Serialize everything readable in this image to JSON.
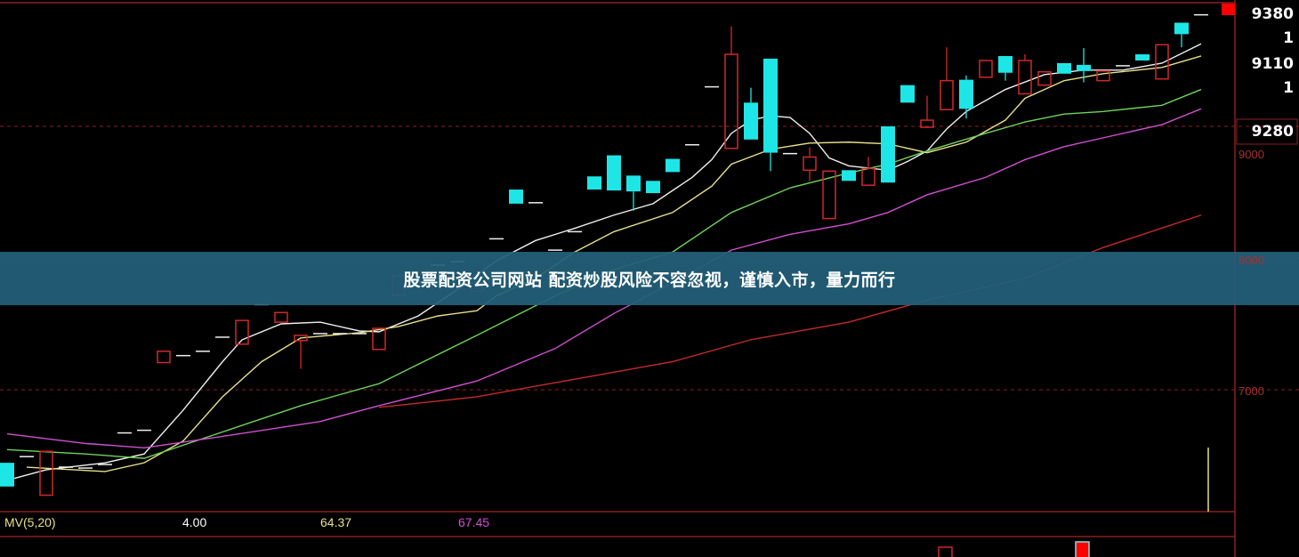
{
  "banner": {
    "text": "股票配资公司网站 配资炒股风险不容忽视，谨慎入市，量力而行"
  },
  "axis_readouts": [
    "9380",
    "1",
    "9110",
    "1",
    "9280"
  ],
  "indicator": {
    "name": "MV(5,20)",
    "v1": "4.00",
    "v2": "64.37",
    "v3": "67.45"
  },
  "colors": {
    "up": "#d0282a",
    "down": "#1ee6e6",
    "ma5": "#f0f0f0",
    "ma10": "#e8e08a",
    "ma20": "#6fd35a",
    "ma30": "#d050d0",
    "ma60": "#c82a2a",
    "grid": "#8a1f1f",
    "banner": "#22607a"
  },
  "chart_data": {
    "type": "candlestick",
    "yticks": [
      7000,
      8000,
      9000
    ],
    "ytick_labels": [
      "7000",
      "8000",
      "9000"
    ],
    "grid": "horizontal dashed",
    "candles": [
      [
        6445,
        6445,
        6265,
        6265
      ],
      [
        6492,
        6492,
        6492,
        6492
      ],
      [
        6199,
        6532,
        6199,
        6532
      ],
      [
        6412,
        6412,
        6412,
        6412
      ],
      [
        6405,
        6405,
        6405,
        6405
      ],
      [
        6432,
        6432,
        6432,
        6432
      ],
      [
        6672,
        6672,
        6672,
        6672
      ],
      [
        6692,
        6692,
        6692,
        6692
      ],
      [
        7206,
        7292,
        7206,
        7292
      ],
      [
        7259,
        7259,
        7259,
        7259
      ],
      [
        7292,
        7292,
        7292,
        7292
      ],
      [
        7399,
        7399,
        7399,
        7399
      ],
      [
        7346,
        7526,
        7346,
        7526
      ],
      [
        7646,
        7646,
        7646,
        7646
      ],
      [
        7513,
        7586,
        7513,
        7586
      ],
      [
        7373,
        7413,
        7159,
        7413
      ],
      [
        7426,
        7426,
        7426,
        7426
      ],
      [
        7426,
        7426,
        7426,
        7426
      ],
      [
        7426,
        7426,
        7426,
        7426
      ],
      [
        7306,
        7466,
        7306,
        7466
      ],
      [
        7719,
        7866,
        7719,
        7866
      ],
      [
        7826,
        7826,
        7813,
        7813
      ],
      [
        7946,
        7946,
        7946,
        7946
      ],
      [
        7973,
        7973,
        7973,
        7973
      ],
      [
        7746,
        7813,
        7746,
        7813
      ],
      [
        8146,
        8146,
        8146,
        8146
      ],
      [
        8520,
        8520,
        8413,
        8413
      ],
      [
        8420,
        8420,
        8420,
        8420
      ],
      [
        8060,
        8060,
        8060,
        8060
      ],
      [
        8200,
        8200,
        8200,
        8200
      ],
      [
        8620,
        8620,
        8520,
        8520
      ],
      [
        8780,
        8780,
        8513,
        8513
      ],
      [
        8626,
        8626,
        8360,
        8506
      ],
      [
        8586,
        8586,
        8493,
        8493
      ],
      [
        8753,
        8753,
        8653,
        8653
      ],
      [
        8860,
        8860,
        8860,
        8860
      ],
      [
        9300,
        9300,
        9300,
        9300
      ],
      [
        8833,
        9760,
        8833,
        9547
      ],
      [
        9180,
        9293,
        8900,
        8900
      ],
      [
        9514,
        9514,
        8660,
        8800
      ],
      [
        8793,
        8793,
        8793,
        8793
      ],
      [
        8667,
        8840,
        8586,
        8767
      ],
      [
        8300,
        8660,
        8300,
        8660
      ],
      [
        8667,
        8667,
        8586,
        8586
      ],
      [
        8553,
        8767,
        8553,
        8680
      ],
      [
        9000,
        9000,
        8573,
        8573
      ],
      [
        9313,
        9313,
        9180,
        9180
      ],
      [
        8993,
        9233,
        8993,
        9047
      ],
      [
        9127,
        9600,
        9127,
        9347
      ],
      [
        9354,
        9387,
        9060,
        9133
      ],
      [
        9373,
        9500,
        9373,
        9500
      ],
      [
        9534,
        9534,
        9347,
        9407
      ],
      [
        9247,
        9547,
        9247,
        9500
      ],
      [
        9313,
        9414,
        9313,
        9414
      ],
      [
        9480,
        9480,
        9400,
        9400
      ],
      [
        9467,
        9594,
        9334,
        9420
      ],
      [
        9347,
        9420,
        9347,
        9420
      ],
      [
        9460,
        9460,
        9460,
        9460
      ],
      [
        9547,
        9547,
        9500,
        9500
      ],
      [
        9360,
        9620,
        9360,
        9620
      ],
      [
        9787,
        9787,
        9600,
        9700
      ],
      [
        9847,
        9847,
        9847,
        9847
      ]
    ],
    "moving_averages": [
      {
        "key": "ma5",
        "points": [
          [
            0,
            6312
          ],
          [
            2,
            6392
          ],
          [
            5,
            6445
          ],
          [
            7,
            6512
          ],
          [
            9,
            6846
          ],
          [
            11,
            7212
          ],
          [
            12,
            7379
          ],
          [
            14,
            7500
          ],
          [
            16,
            7513
          ],
          [
            18,
            7446
          ],
          [
            19,
            7440
          ],
          [
            21,
            7560
          ],
          [
            23,
            7760
          ],
          [
            25,
            7980
          ],
          [
            27,
            8133
          ],
          [
            29,
            8226
          ],
          [
            31,
            8326
          ],
          [
            33,
            8413
          ],
          [
            35,
            8613
          ],
          [
            36,
            8747
          ],
          [
            37,
            8947
          ],
          [
            38,
            9047
          ],
          [
            39,
            9080
          ],
          [
            40,
            9067
          ],
          [
            41,
            8947
          ],
          [
            42,
            8760
          ],
          [
            43,
            8700
          ],
          [
            45,
            8667
          ],
          [
            46,
            8733
          ],
          [
            47,
            8813
          ],
          [
            48,
            8980
          ],
          [
            49,
            9113
          ],
          [
            51,
            9280
          ],
          [
            53,
            9393
          ],
          [
            55,
            9427
          ],
          [
            57,
            9427
          ],
          [
            59,
            9480
          ],
          [
            61,
            9627
          ]
        ]
      },
      {
        "key": "ma10",
        "points": [
          [
            1,
            6412
          ],
          [
            5,
            6379
          ],
          [
            7,
            6445
          ],
          [
            9,
            6612
          ],
          [
            11,
            6946
          ],
          [
            13,
            7213
          ],
          [
            15,
            7393
          ],
          [
            18,
            7433
          ],
          [
            20,
            7480
          ],
          [
            22,
            7560
          ],
          [
            24,
            7600
          ],
          [
            25,
            7713
          ],
          [
            27,
            7846
          ],
          [
            29,
            8046
          ],
          [
            31,
            8200
          ],
          [
            34,
            8346
          ],
          [
            36,
            8546
          ],
          [
            37,
            8713
          ],
          [
            39,
            8826
          ],
          [
            41,
            8873
          ],
          [
            43,
            8880
          ],
          [
            45,
            8867
          ],
          [
            47,
            8800
          ],
          [
            49,
            8880
          ],
          [
            51,
            9047
          ],
          [
            52,
            9213
          ],
          [
            54,
            9347
          ],
          [
            56,
            9400
          ],
          [
            59,
            9447
          ],
          [
            61,
            9534
          ]
        ]
      },
      {
        "key": "ma20",
        "points": [
          [
            0,
            6545
          ],
          [
            4,
            6512
          ],
          [
            7,
            6479
          ],
          [
            11,
            6679
          ],
          [
            15,
            6879
          ],
          [
            19,
            7046
          ],
          [
            24,
            7413
          ],
          [
            28,
            7713
          ],
          [
            31,
            7913
          ],
          [
            34,
            8046
          ],
          [
            37,
            8346
          ],
          [
            40,
            8533
          ],
          [
            43,
            8646
          ],
          [
            45,
            8713
          ],
          [
            47,
            8813
          ],
          [
            50,
            8947
          ],
          [
            52,
            9033
          ],
          [
            54,
            9093
          ],
          [
            56,
            9113
          ],
          [
            59,
            9160
          ],
          [
            61,
            9280
          ]
        ]
      },
      {
        "key": "ma30",
        "points": [
          [
            0,
            6665
          ],
          [
            4,
            6592
          ],
          [
            7,
            6559
          ],
          [
            11,
            6646
          ],
          [
            16,
            6759
          ],
          [
            19,
            6879
          ],
          [
            24,
            7066
          ],
          [
            28,
            7313
          ],
          [
            31,
            7579
          ],
          [
            34,
            7813
          ],
          [
            37,
            8060
          ],
          [
            40,
            8180
          ],
          [
            43,
            8260
          ],
          [
            45,
            8346
          ],
          [
            47,
            8480
          ],
          [
            50,
            8613
          ],
          [
            52,
            8747
          ],
          [
            54,
            8846
          ],
          [
            56,
            8913
          ],
          [
            59,
            9013
          ],
          [
            61,
            9133
          ]
        ]
      },
      {
        "key": "ma60",
        "points": [
          [
            19,
            6866
          ],
          [
            24,
            6946
          ],
          [
            29,
            7080
          ],
          [
            34,
            7213
          ],
          [
            38,
            7380
          ],
          [
            43,
            7513
          ],
          [
            47,
            7680
          ],
          [
            52,
            7846
          ],
          [
            56,
            8080
          ],
          [
            61,
            8326
          ]
        ]
      }
    ]
  }
}
